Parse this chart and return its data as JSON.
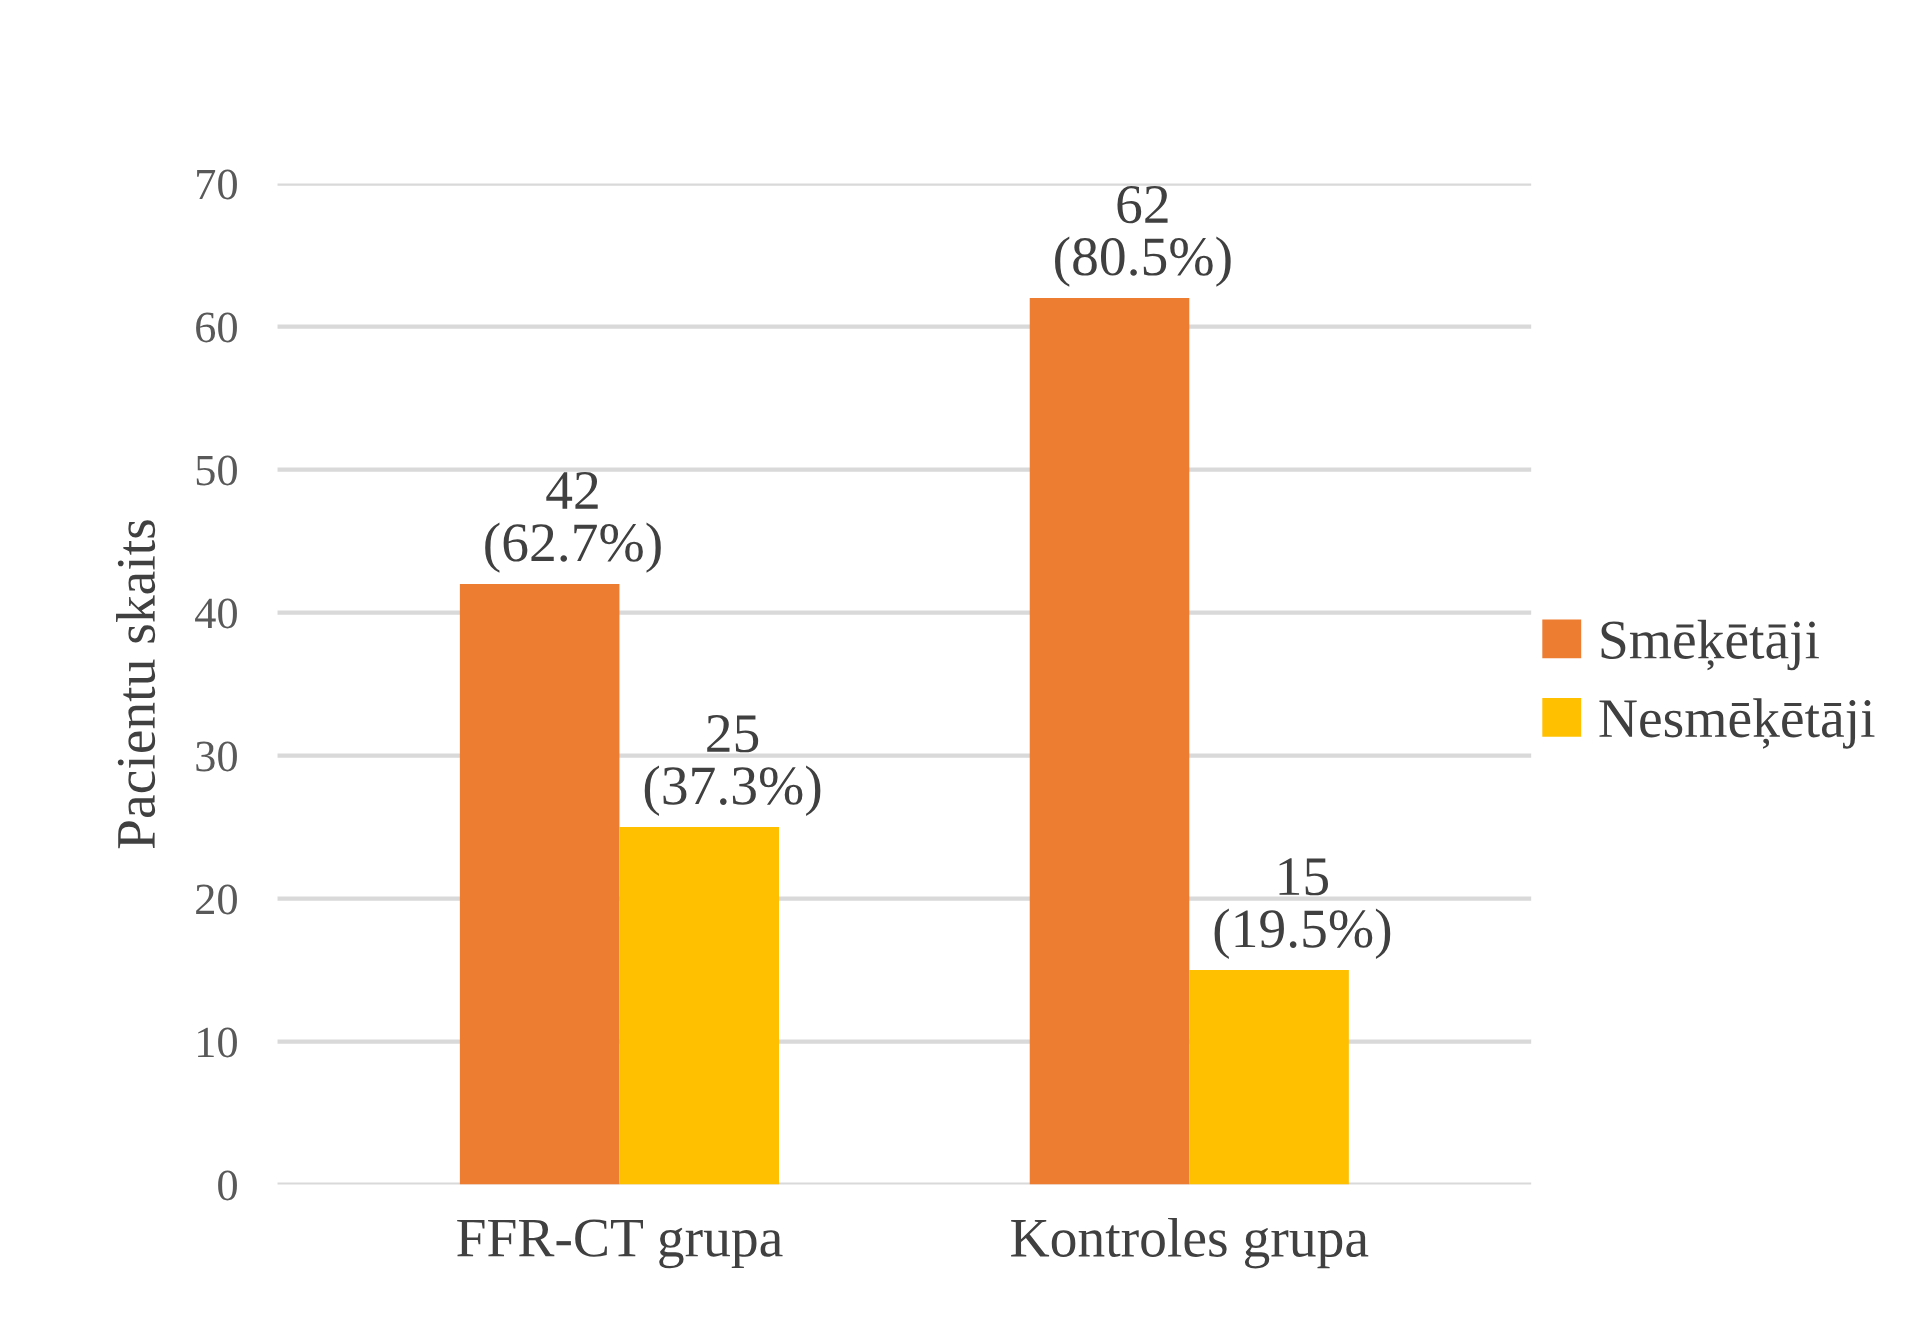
{
  "chart_data": {
    "type": "bar",
    "ylabel": "Pacientu skaits",
    "categories": [
      "FFR-CT grupa",
      "Kontroles grupa"
    ],
    "series": [
      {
        "name": "Smēķētāji",
        "color": "#ed7d31",
        "values": [
          42,
          62
        ],
        "value_labels": [
          "42\n(62.7%)",
          "62\n(80.5%)"
        ]
      },
      {
        "name": "Nesmēķētāji",
        "color": "#ffc000",
        "values": [
          25,
          15
        ],
        "value_labels": [
          "25\n(37.3%)",
          "15\n(19.5%)"
        ]
      }
    ],
    "ylim": [
      0,
      70
    ],
    "yticks": [
      0,
      10,
      20,
      30,
      40,
      50,
      60,
      70
    ],
    "grid": "y",
    "legend": "right"
  }
}
